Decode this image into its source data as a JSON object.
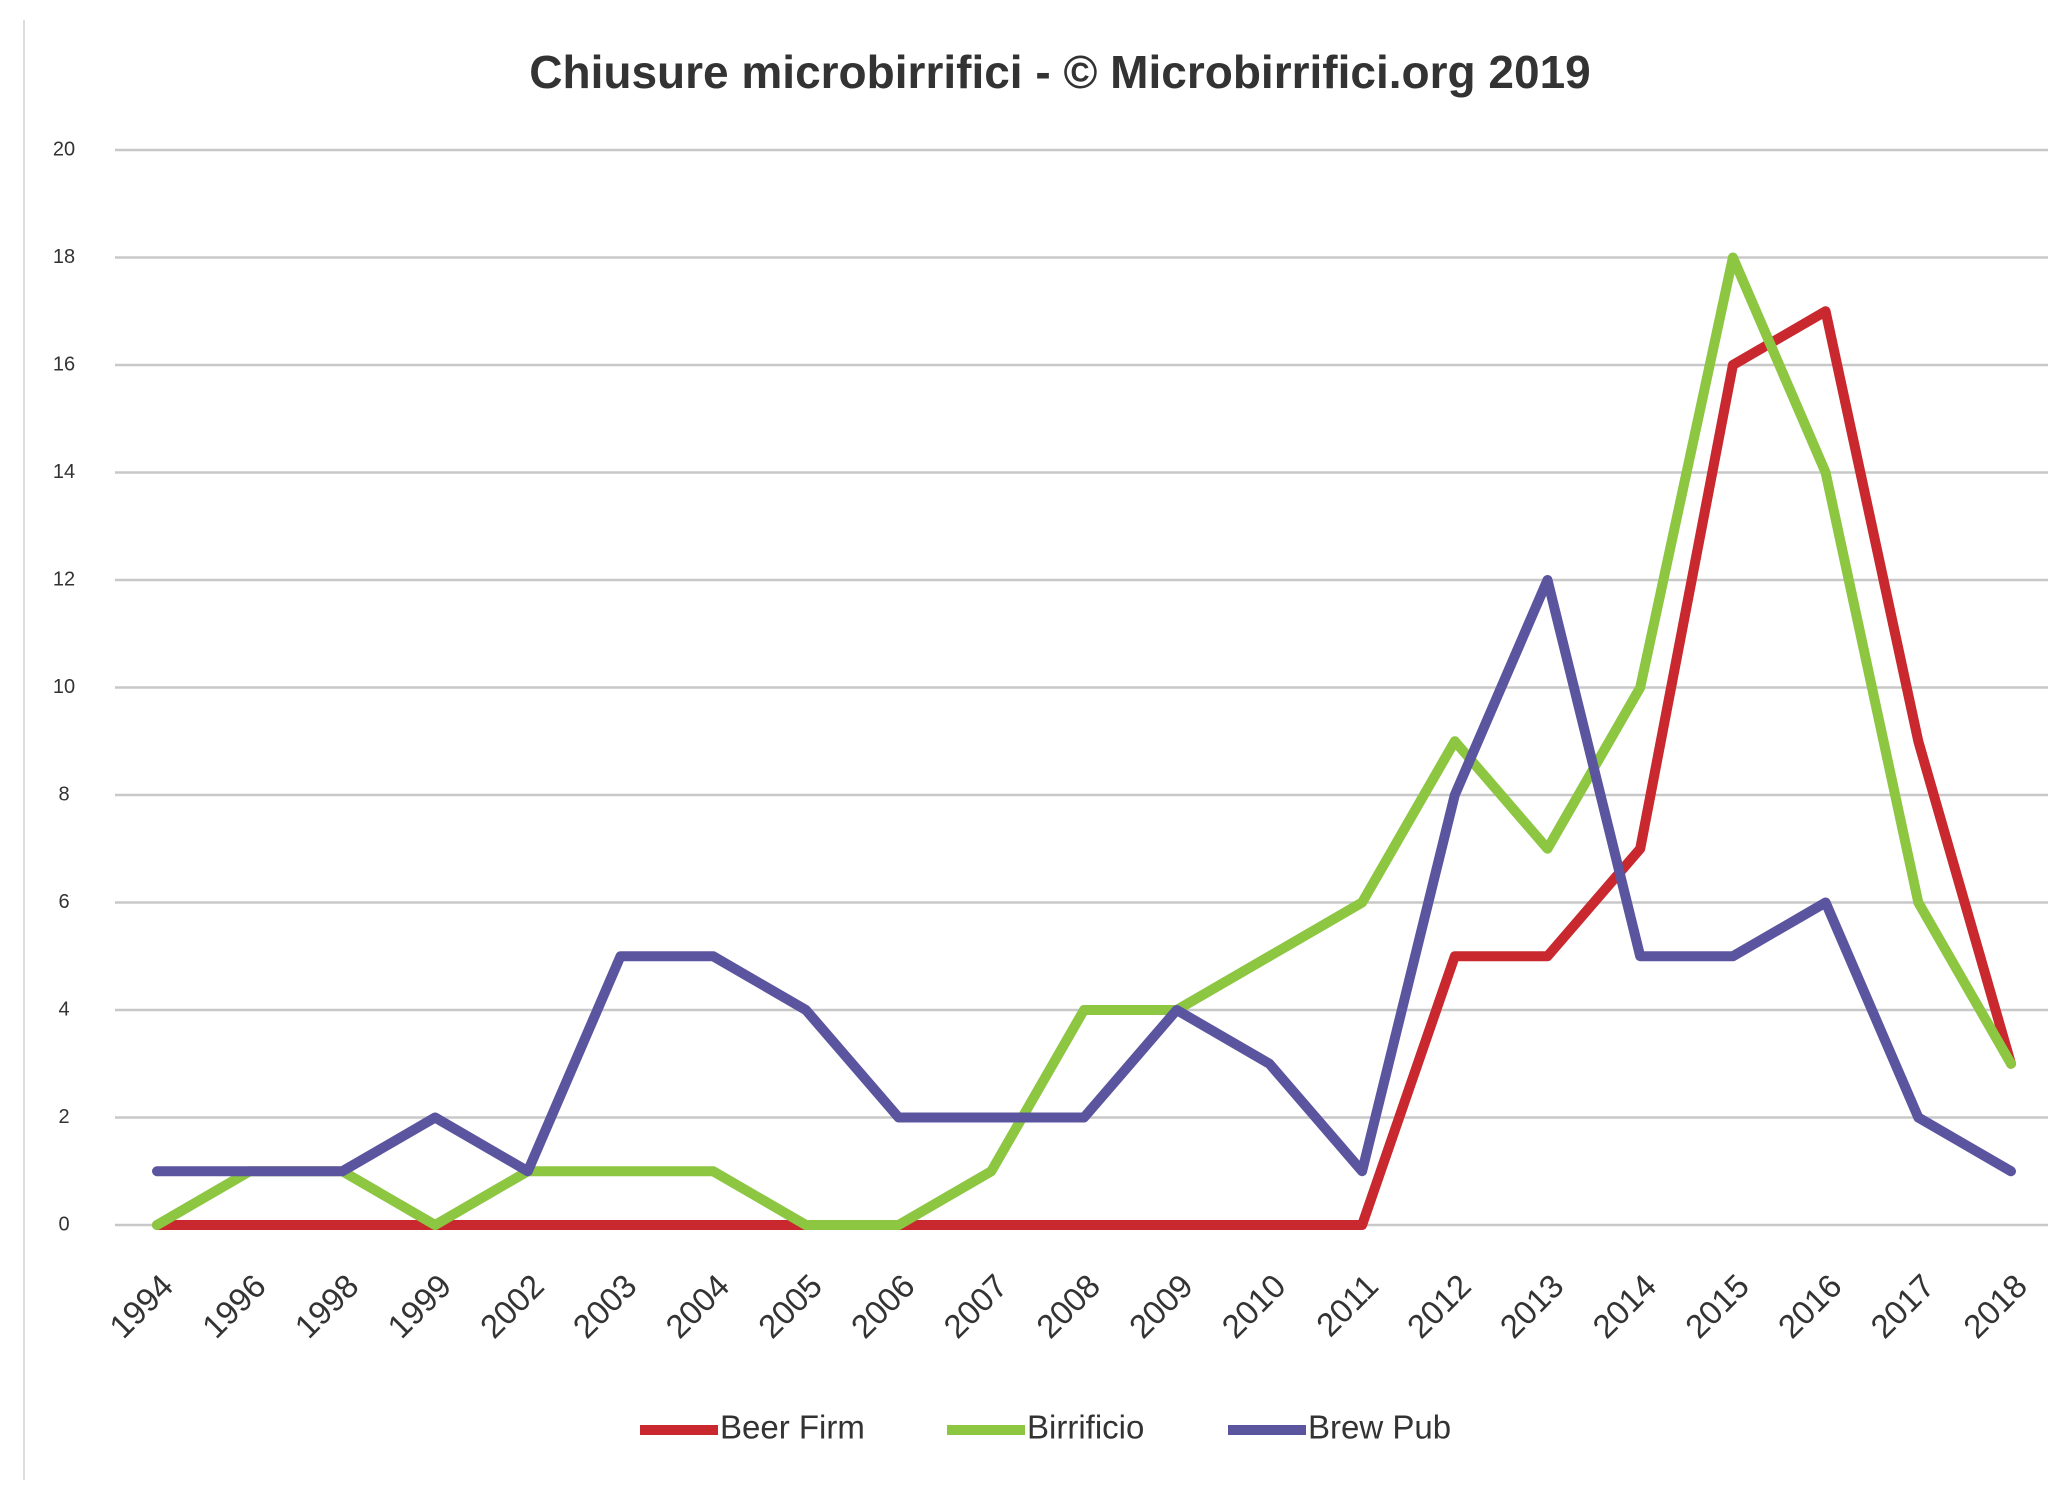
{
  "chart_data": {
    "type": "line",
    "title": "Chiusure microbirrifici - © Microbirrifici.org 2019",
    "categories": [
      "1994",
      "1996",
      "1998",
      "1999",
      "2002",
      "2003",
      "2004",
      "2005",
      "2006",
      "2007",
      "2008",
      "2009",
      "2010",
      "2011",
      "2012",
      "2013",
      "2014",
      "2015",
      "2016",
      "2017",
      "2018"
    ],
    "series": [
      {
        "name": "Beer Firm",
        "color": "#c8282e",
        "values": [
          0,
          0,
          0,
          0,
          0,
          0,
          0,
          0,
          0,
          0,
          0,
          0,
          0,
          0,
          5,
          5,
          7,
          16,
          17,
          9,
          3
        ]
      },
      {
        "name": "Birrificio",
        "color": "#8dc641",
        "values": [
          0,
          1,
          1,
          0,
          1,
          1,
          1,
          0,
          0,
          1,
          4,
          4,
          5,
          6,
          9,
          7,
          10,
          18,
          14,
          6,
          3
        ]
      },
      {
        "name": "Brew Pub",
        "color": "#5b559f",
        "values": [
          1,
          1,
          1,
          2,
          1,
          5,
          5,
          4,
          2,
          2,
          2,
          4,
          3,
          1,
          8,
          12,
          5,
          5,
          6,
          2,
          1
        ]
      }
    ],
    "ylim": [
      0,
      20
    ],
    "yticks": [
      0,
      2,
      4,
      6,
      8,
      10,
      12,
      14,
      16,
      18,
      20
    ],
    "grid": true,
    "legend": "bottom"
  }
}
